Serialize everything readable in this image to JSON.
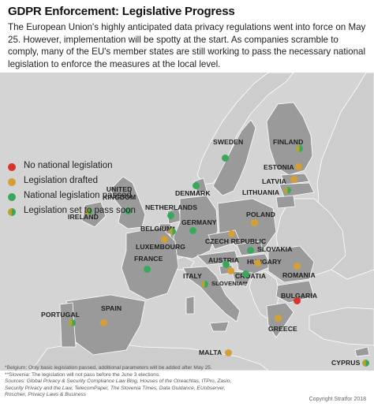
{
  "title": "GDPR Enforcement: Legislative Progress",
  "intro": "The European Union's highly anticipated data privacy regulations went into force on May 25. However, implementation will be spotty at the start. As companies scramble to comply, many of the EU's member states are still working to pass the necessary national legislation to enforce the measures at the local level.",
  "colors": {
    "none": "#d9342b",
    "drafted": "#d4a035",
    "passed": "#3aa85c",
    "soon_a": "#b5a42a",
    "soon_b": "#3aa85c",
    "eu_land": "#9a9a9a",
    "non_eu_land": "#cdcdcd",
    "sea": "#d4d4d4"
  },
  "legend": [
    {
      "key": "none",
      "label": "No national legislation"
    },
    {
      "key": "drafted",
      "label": "Legislation drafted"
    },
    {
      "key": "passed",
      "label": "National legislation passed"
    },
    {
      "key": "soon",
      "label": "Legislation set to pass soon"
    }
  ],
  "countries": [
    {
      "id": "sweden",
      "label": "SWEDEN",
      "status": "passed"
    },
    {
      "id": "finland",
      "label": "FINLAND",
      "status": "soon"
    },
    {
      "id": "estonia",
      "label": "ESTONIA",
      "status": "drafted"
    },
    {
      "id": "latvia",
      "label": "LATVIA",
      "status": "drafted"
    },
    {
      "id": "lithuania",
      "label": "LITHUANIA",
      "status": "soon"
    },
    {
      "id": "denmark",
      "label": "DENMARK",
      "status": "passed"
    },
    {
      "id": "uk",
      "label": "UNITED KINGDOM",
      "status": "passed"
    },
    {
      "id": "ireland",
      "label": "IRELAND",
      "status": "soon"
    },
    {
      "id": "netherlands",
      "label": "NETHERLANDS",
      "status": "passed"
    },
    {
      "id": "germany",
      "label": "GERMANY",
      "status": "passed"
    },
    {
      "id": "poland",
      "label": "POLAND",
      "status": "drafted"
    },
    {
      "id": "belgium",
      "label": "BELGIUM*",
      "status": "soon"
    },
    {
      "id": "luxembourg",
      "label": "LUXEMBOURG",
      "status": "drafted"
    },
    {
      "id": "czech",
      "label": "CZECH REPUBLIC",
      "status": "drafted"
    },
    {
      "id": "slovakia",
      "label": "SLOVAKIA",
      "status": "passed"
    },
    {
      "id": "france",
      "label": "FRANCE",
      "status": "passed"
    },
    {
      "id": "austria",
      "label": "AUSTRIA",
      "status": "passed"
    },
    {
      "id": "hungary",
      "label": "HUNGARY",
      "status": "drafted"
    },
    {
      "id": "croatia",
      "label": "CROATIA",
      "status": "passed"
    },
    {
      "id": "slovenia",
      "label": "SLOVENIA**",
      "status": "drafted"
    },
    {
      "id": "romania",
      "label": "ROMANIA",
      "status": "drafted"
    },
    {
      "id": "italy",
      "label": "ITALY",
      "status": "soon"
    },
    {
      "id": "bulgaria",
      "label": "BULGARIA",
      "status": "none"
    },
    {
      "id": "spain",
      "label": "SPAIN",
      "status": "drafted"
    },
    {
      "id": "portugal",
      "label": "PORTUGAL",
      "status": "soon"
    },
    {
      "id": "greece",
      "label": "GREECE",
      "status": "drafted"
    },
    {
      "id": "malta",
      "label": "MALTA",
      "status": "drafted"
    },
    {
      "id": "cyprus",
      "label": "CYPRUS",
      "status": "soon"
    }
  ],
  "footnotes": [
    "*Belgium: Only basic legislation passed, additional parameters will be added after May 25.",
    "**Slovenia: The legislation will not pass before the June 3 elections.",
    "Sources: Global Privacy & Security Compliance Law Blog, Houses of the Oireachtas, ITPro, Zasio,",
    "Security Privacy and the Law, TelecomPaper, The Slovenia Times, Data Guidance, EUobserver,",
    "Roschier, Privacy Laws & Business"
  ],
  "copyright": "Copyright Stratfor 2018"
}
